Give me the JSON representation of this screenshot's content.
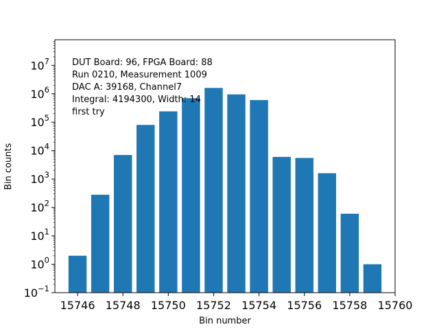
{
  "chart_data": {
    "type": "bar",
    "xlabel": "Bin number",
    "ylabel": "Bin counts",
    "yscale": "log",
    "xlim": [
      15745.0,
      15760.0
    ],
    "ylim_exponent": [
      -1,
      7.9
    ],
    "x_ticks": [
      15746,
      15748,
      15750,
      15752,
      15754,
      15756,
      15758,
      15760
    ],
    "y_tick_exponents": [
      -1,
      0,
      1,
      2,
      3,
      4,
      5,
      6,
      7
    ],
    "bar_color": "#1f77b4",
    "grid": false,
    "x": [
      15746,
      15747,
      15748,
      15749,
      15750,
      15751,
      15752,
      15753,
      15754,
      15755,
      15756,
      15757,
      15758,
      15759
    ],
    "values": [
      2,
      280,
      7000,
      80000,
      240000,
      700000,
      1600000,
      950000,
      600000,
      6000,
      5500,
      1600,
      60,
      1
    ],
    "annotation_lines": [
      "DUT Board: 96, FPGA Board: 88",
      "Run 0210, Measurement 1009",
      "DAC A: 39168, Channel7",
      "Integral: 4194300, Width: 14",
      "first try"
    ]
  }
}
